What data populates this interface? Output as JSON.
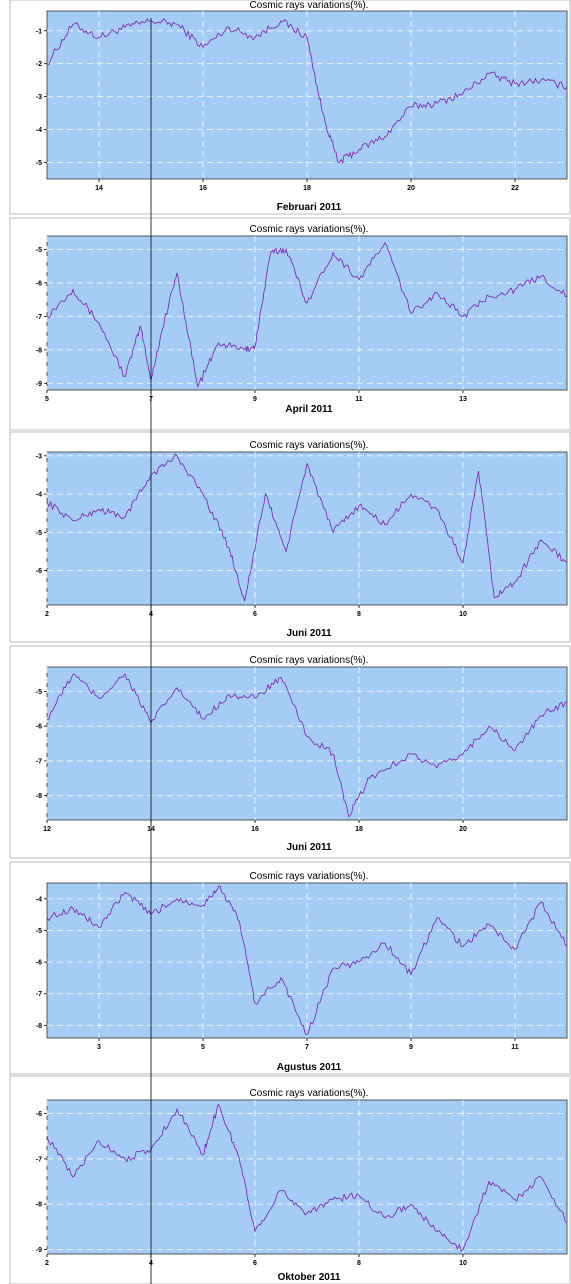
{
  "figure": {
    "marker_line": "vertical reference line",
    "colors": {
      "plot_bg": "#a5ccf4",
      "series": "#7a1fb0",
      "grid": "#ffffff"
    }
  },
  "chart_data": [
    {
      "type": "line",
      "title": "Cosmic rays variations(%).",
      "xlabel": "Februari 2011",
      "ylabel": "",
      "xlim": [
        13,
        23
      ],
      "ylim": [
        -5.5,
        -0.4
      ],
      "xticks": [
        14,
        16,
        18,
        20,
        22
      ],
      "yticks": [
        -1,
        -2,
        -3,
        -4,
        -5
      ],
      "grid": true,
      "series": [
        {
          "x": [
            13.0,
            13.5,
            14.0,
            14.5,
            15.0,
            15.5,
            16.0,
            16.5,
            17.0,
            17.5,
            18.0,
            18.3,
            18.6,
            19.0,
            19.5,
            20.0,
            20.5,
            21.0,
            21.5,
            22.0,
            22.5,
            23.0
          ],
          "values": [
            -2.0,
            -0.8,
            -1.2,
            -0.9,
            -0.7,
            -0.8,
            -1.5,
            -0.9,
            -1.2,
            -0.7,
            -1.2,
            -3.5,
            -5.0,
            -4.6,
            -4.2,
            -3.3,
            -3.2,
            -2.9,
            -2.3,
            -2.6,
            -2.5,
            -2.7
          ]
        }
      ]
    },
    {
      "type": "line",
      "title": "Cosmic rays variations(%).",
      "xlabel": "April 2011",
      "ylabel": "",
      "xlim": [
        5,
        15
      ],
      "ylim": [
        -9.2,
        -4.6
      ],
      "xticks": [
        5,
        7,
        9,
        11,
        13
      ],
      "yticks": [
        -5,
        -6,
        -7,
        -8,
        -9
      ],
      "grid": true,
      "series": [
        {
          "x": [
            5.0,
            5.5,
            6.0,
            6.5,
            6.8,
            7.0,
            7.2,
            7.5,
            7.9,
            8.3,
            8.8,
            9.0,
            9.3,
            9.6,
            10.0,
            10.5,
            11.0,
            11.5,
            12.0,
            12.5,
            13.0,
            13.5,
            14.0,
            14.5,
            15.0
          ],
          "values": [
            -7.0,
            -6.2,
            -7.2,
            -8.8,
            -7.3,
            -8.9,
            -7.5,
            -5.7,
            -9.1,
            -7.8,
            -8.0,
            -7.9,
            -5.1,
            -5.0,
            -6.6,
            -5.1,
            -5.9,
            -4.8,
            -6.9,
            -6.3,
            -7.0,
            -6.4,
            -6.2,
            -5.8,
            -6.4
          ]
        }
      ]
    },
    {
      "type": "line",
      "title": "Cosmic rays variations(%).",
      "xlabel": "Juni 2011",
      "ylabel": "",
      "xlim": [
        2,
        12
      ],
      "ylim": [
        -6.9,
        -2.9
      ],
      "xticks": [
        2,
        4,
        6,
        8,
        10
      ],
      "yticks": [
        -3,
        -4,
        -5,
        -6
      ],
      "grid": true,
      "series": [
        {
          "x": [
            2.0,
            2.5,
            3.0,
            3.5,
            4.0,
            4.5,
            5.0,
            5.5,
            5.8,
            6.2,
            6.6,
            7.0,
            7.5,
            8.0,
            8.5,
            9.0,
            9.5,
            10.0,
            10.3,
            10.6,
            11.0,
            11.5,
            12.0
          ],
          "values": [
            -4.2,
            -4.7,
            -4.4,
            -4.6,
            -3.5,
            -3.0,
            -4.0,
            -5.4,
            -6.8,
            -4.0,
            -5.5,
            -3.2,
            -5.0,
            -4.3,
            -4.8,
            -4.0,
            -4.4,
            -5.8,
            -3.4,
            -6.7,
            -6.3,
            -5.2,
            -5.8
          ]
        }
      ]
    },
    {
      "type": "line",
      "title": "Cosmic rays variations(%).",
      "xlabel": "Juni 2011",
      "ylabel": "",
      "xlim": [
        12,
        22
      ],
      "ylim": [
        -8.7,
        -4.3
      ],
      "xticks": [
        12,
        14,
        16,
        18,
        20
      ],
      "yticks": [
        -5,
        -6,
        -7,
        -8
      ],
      "grid": true,
      "series": [
        {
          "x": [
            12.0,
            12.5,
            13.0,
            13.5,
            14.0,
            14.5,
            15.0,
            15.5,
            16.0,
            16.5,
            17.0,
            17.5,
            17.8,
            18.2,
            19.0,
            19.5,
            20.0,
            20.5,
            21.0,
            21.5,
            22.0
          ],
          "values": [
            -5.8,
            -4.5,
            -5.2,
            -4.5,
            -5.9,
            -4.9,
            -5.8,
            -5.1,
            -5.2,
            -4.6,
            -6.3,
            -6.8,
            -8.6,
            -7.5,
            -6.8,
            -7.2,
            -6.8,
            -6.0,
            -6.7,
            -5.7,
            -5.3
          ]
        }
      ]
    },
    {
      "type": "line",
      "title": "Cosmic rays variations(%).",
      "xlabel": "Agustus 2011",
      "ylabel": "",
      "xlim": [
        2,
        12
      ],
      "ylim": [
        -8.4,
        -3.5
      ],
      "xticks": [
        3,
        5,
        7,
        9,
        11
      ],
      "yticks": [
        -4,
        -5,
        -6,
        -7,
        -8
      ],
      "grid": true,
      "series": [
        {
          "x": [
            2.0,
            2.5,
            3.0,
            3.5,
            4.0,
            4.5,
            5.0,
            5.3,
            5.7,
            6.0,
            6.5,
            7.0,
            7.5,
            8.0,
            8.5,
            9.0,
            9.5,
            10.0,
            10.5,
            11.0,
            11.5,
            12.0
          ],
          "values": [
            -4.6,
            -4.3,
            -4.9,
            -3.8,
            -4.5,
            -4.0,
            -4.2,
            -3.6,
            -4.7,
            -7.3,
            -6.5,
            -8.3,
            -6.2,
            -6.0,
            -5.4,
            -6.4,
            -4.6,
            -5.5,
            -4.8,
            -5.6,
            -4.1,
            -5.5
          ]
        }
      ]
    },
    {
      "type": "line",
      "title": "Cosmic rays variations(%).",
      "xlabel": "Oktober 2011",
      "ylabel": "",
      "xlim": [
        2,
        12
      ],
      "ylim": [
        -9.1,
        -5.7
      ],
      "xticks": [
        2,
        4,
        6,
        8,
        10
      ],
      "yticks": [
        -6,
        -7,
        -8,
        -9
      ],
      "grid": true,
      "series": [
        {
          "x": [
            2.0,
            2.5,
            3.0,
            3.5,
            4.0,
            4.5,
            5.0,
            5.3,
            5.7,
            6.0,
            6.5,
            7.0,
            7.5,
            8.0,
            8.5,
            9.0,
            9.5,
            10.0,
            10.5,
            11.0,
            11.5,
            12.0
          ],
          "values": [
            -6.5,
            -7.4,
            -6.6,
            -7.0,
            -6.8,
            -5.9,
            -6.9,
            -5.8,
            -7.0,
            -8.6,
            -7.7,
            -8.2,
            -7.9,
            -7.8,
            -8.3,
            -8.0,
            -8.6,
            -9.0,
            -7.5,
            -7.9,
            -7.4,
            -8.4
          ]
        }
      ]
    }
  ]
}
